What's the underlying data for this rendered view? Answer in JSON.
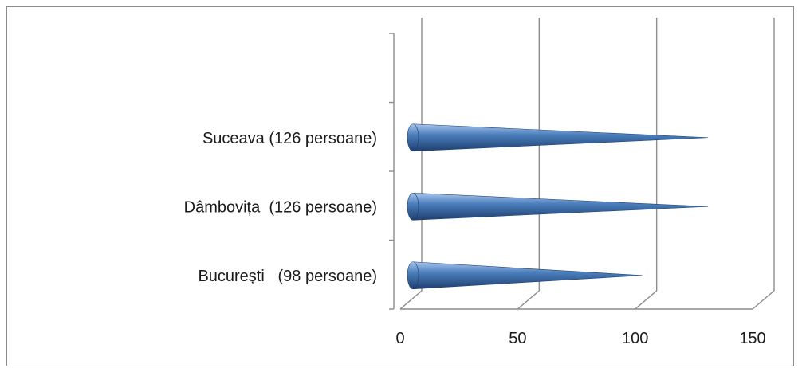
{
  "chart_data": {
    "type": "bar",
    "orientation": "horizontal",
    "style": "3d-cone",
    "categories": [
      "București   (98 persoane)",
      "Dâmbovița  (126 persoane)",
      "Suceava (126 persoane)"
    ],
    "values": [
      98,
      126,
      126
    ],
    "xlim": [
      0,
      150
    ],
    "x_ticks": [
      "0",
      "50",
      "100",
      "150"
    ],
    "grid": true,
    "legend": "none",
    "title": "",
    "xlabel": "",
    "ylabel": "",
    "colors": {
      "cone": "#4a7ebb",
      "cone_light": "#a9c6ee",
      "cone_dark": "#1f3f70",
      "grid": "#8c8c8c"
    }
  }
}
